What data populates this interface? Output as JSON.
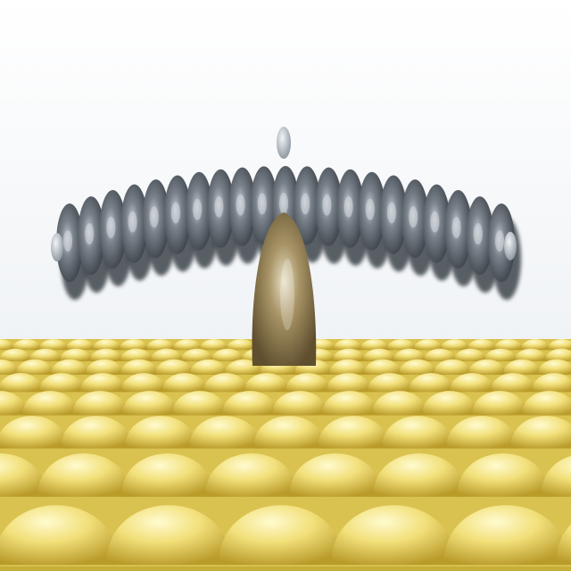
{
  "scene": {
    "description_colors": {
      "background_top": "#ffffff",
      "background_bottom": "#e9eef3",
      "surface_light": "#fff7a8",
      "surface_mid": "#f1df6c",
      "surface_dark": "#b99c2c",
      "molecule_light": "#c8cdd3",
      "molecule_mid": "#6f7780",
      "molecule_dark": "#3a4047",
      "hydrogen": "#c9d0d6",
      "adatom_light": "#d8cfb0",
      "adatom_mid": "#a08c60",
      "adatom_dark": "#6b5a36"
    },
    "icons": {
      "surface": "gold-atom-surface-icon",
      "molecule": "carbon-ring-molecule-icon",
      "adatom": "adatom-icon"
    }
  }
}
